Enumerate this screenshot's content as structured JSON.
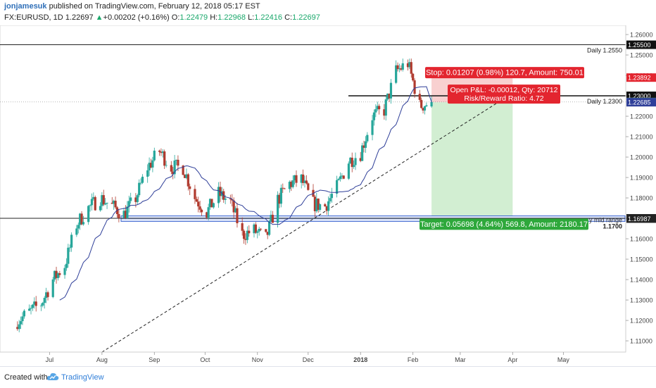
{
  "header": {
    "username": "jonjamesuk",
    "published": "published on TradingView.com, February 12, 2018 05:17 EST",
    "symbol": "FX:EURUSD, 1D",
    "last": "1.22697",
    "change_arrow": "▲",
    "change": "+0.00202 (+0.16%)",
    "o_label": "O:",
    "o_value": "1.22479",
    "h_label": "H:",
    "h_value": "1.22968",
    "l_label": "L:",
    "l_value": "1.22416",
    "c_label": "C:",
    "c_value": "1.22697"
  },
  "footer": {
    "created_with": "Created with",
    "brand": "TradingView",
    "logo_icon": "tradingview-cloud-icon"
  },
  "colors": {
    "bull": "#26a69a",
    "bear": "#b03a2e",
    "ma": "#2f3f99",
    "stop_zone": "#f7c8c8",
    "target_zone": "#cdeccd",
    "stop_label": "#e3252f",
    "target_label": "#2ea83b",
    "range_fill": "#dfe7fb",
    "range_border": "#3d66d0"
  },
  "chart_data": {
    "type": "candlestick",
    "symbol": "EURUSD",
    "timeframe": "1D",
    "y_ticks": [
      "1.26000",
      "1.25000",
      "1.24000",
      "1.23000",
      "1.22000",
      "1.21000",
      "1.20000",
      "1.19000",
      "1.18000",
      "1.17000",
      "1.16000",
      "1.15000",
      "1.14000",
      "1.13000",
      "1.12000",
      "1.11000"
    ],
    "x_ticks": [
      "Jul",
      "Aug",
      "Sep",
      "Oct",
      "Nov",
      "Dec",
      "2018",
      "Feb",
      "Mar",
      "Apr",
      "May"
    ],
    "ylim": [
      1.1045,
      1.2645
    ],
    "price_labels": [
      {
        "text": "1.25500",
        "value": 1.255,
        "style": "level"
      },
      {
        "text": "1.23892",
        "value": 1.23892,
        "style": "stop"
      },
      {
        "text": "1.23000",
        "value": 1.23,
        "style": "level"
      },
      {
        "text": "1.22697",
        "value": 1.22697,
        "style": "last"
      },
      {
        "text": "1.22685",
        "value": 1.22685,
        "style": "ma"
      },
      {
        "text": "1.17000",
        "value": 1.17,
        "style": "level"
      },
      {
        "text": "1.16987",
        "value": 1.16987,
        "style": "target"
      }
    ],
    "levels": [
      {
        "label": "Daily 1.2550",
        "value": 1.255
      },
      {
        "label": "Daily 1.2300",
        "value": 1.23
      }
    ],
    "range_zone": {
      "label": "y mid range",
      "top": 1.1712,
      "bottom": 1.1685,
      "caption": "1.1700"
    },
    "position": {
      "entry": 1.22685,
      "stop": 1.23892,
      "target": 1.16987,
      "stop_text": "Stop: 0.01207 (0.98%) 120.7, Amount: 750.01",
      "pnl_text": "Open P&L: -0.00012, Qty: 20712",
      "rr_text": "Risk/Reward Ratio: 4.72",
      "target_text": "Target: 0.05698 (4.64%) 569.8, Amount: 2180.17"
    },
    "trendline": {
      "from": [
        "2017-08-01",
        1.1045
      ],
      "to": [
        "2018-04-02",
        1.2318
      ]
    },
    "closes": [
      {
        "date": "2017-06-12",
        "close": 1.1198
      },
      {
        "date": "2017-06-26",
        "close": 1.1283
      },
      {
        "date": "2017-07-03",
        "close": 1.14
      },
      {
        "date": "2017-07-10",
        "close": 1.147
      },
      {
        "date": "2017-07-17",
        "close": 1.167
      },
      {
        "date": "2017-07-24",
        "close": 1.175
      },
      {
        "date": "2017-07-31",
        "close": 1.18
      },
      {
        "date": "2017-08-07",
        "close": 1.176
      },
      {
        "date": "2017-08-14",
        "close": 1.172
      },
      {
        "date": "2017-08-21",
        "close": 1.18
      },
      {
        "date": "2017-08-28",
        "close": 1.195
      },
      {
        "date": "2017-09-04",
        "close": 1.203
      },
      {
        "date": "2017-09-11",
        "close": 1.195
      },
      {
        "date": "2017-09-18",
        "close": 1.195
      },
      {
        "date": "2017-09-25",
        "close": 1.18
      },
      {
        "date": "2017-10-02",
        "close": 1.173
      },
      {
        "date": "2017-10-09",
        "close": 1.182
      },
      {
        "date": "2017-10-16",
        "close": 1.178
      },
      {
        "date": "2017-10-23",
        "close": 1.162
      },
      {
        "date": "2017-10-30",
        "close": 1.164
      },
      {
        "date": "2017-11-06",
        "close": 1.16
      },
      {
        "date": "2017-11-13",
        "close": 1.179
      },
      {
        "date": "2017-11-20",
        "close": 1.187
      },
      {
        "date": "2017-11-27",
        "close": 1.189
      },
      {
        "date": "2017-12-04",
        "close": 1.177
      },
      {
        "date": "2017-12-11",
        "close": 1.176
      },
      {
        "date": "2017-12-18",
        "close": 1.185
      },
      {
        "date": "2017-12-25",
        "close": 1.198
      },
      {
        "date": "2018-01-01",
        "close": 1.202
      },
      {
        "date": "2018-01-08",
        "close": 1.22
      },
      {
        "date": "2018-01-15",
        "close": 1.223
      },
      {
        "date": "2018-01-22",
        "close": 1.242
      },
      {
        "date": "2018-01-29",
        "close": 1.246
      },
      {
        "date": "2018-02-05",
        "close": 1.225
      },
      {
        "date": "2018-02-12",
        "close": 1.22697
      }
    ],
    "ma_end": 1.22685
  }
}
